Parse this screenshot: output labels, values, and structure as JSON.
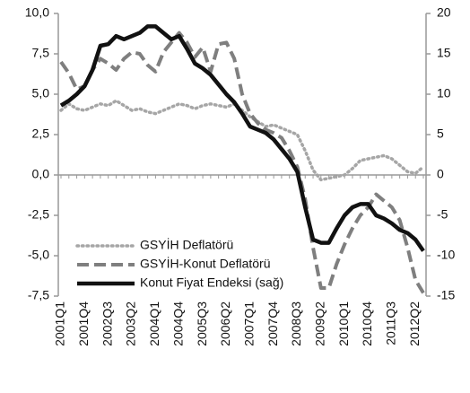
{
  "chart_data": {
    "type": "line",
    "categories": [
      "2001Q1",
      null,
      null,
      "2001Q4",
      null,
      null,
      "2002Q3",
      null,
      null,
      "2003Q2",
      null,
      null,
      "2004Q1",
      null,
      null,
      "2004Q4",
      null,
      null,
      "2005Q3",
      null,
      null,
      "2006Q2",
      null,
      null,
      "2007Q1",
      null,
      null,
      "2007Q4",
      null,
      null,
      "2008Q3",
      null,
      null,
      "2009Q2",
      null,
      null,
      "2010Q1",
      null,
      null,
      "2010Q4",
      null,
      null,
      "2011Q3",
      null,
      null,
      "2012Q2",
      null
    ],
    "ylim": [
      -7.5,
      10
    ],
    "yticks": [
      {
        "value": -7.5,
        "label": "-7,5"
      },
      {
        "value": -5,
        "label": "-5,0"
      },
      {
        "value": -2.5,
        "label": "-2,5"
      },
      {
        "value": 0,
        "label": "0,0"
      },
      {
        "value": 2.5,
        "label": "2,5"
      },
      {
        "value": 5,
        "label": "5,0"
      },
      {
        "value": 7.5,
        "label": "7,5"
      },
      {
        "value": 10,
        "label": "10,0"
      }
    ],
    "y2lim": [
      -15,
      20
    ],
    "y2ticks": [
      -15,
      -10,
      -5,
      0,
      5,
      10,
      15,
      20
    ],
    "legend": "lower left",
    "series": [
      {
        "name": "GSYİH Deflatörü",
        "color": "#a6a6a6",
        "line_style": "dotted",
        "values": [
          4.0,
          4.4,
          4.1,
          4.0,
          4.2,
          4.4,
          4.3,
          4.6,
          4.3,
          4.0,
          4.1,
          3.9,
          3.8,
          4.0,
          4.2,
          4.4,
          4.3,
          4.1,
          4.3,
          4.4,
          4.3,
          4.2,
          4.4,
          4.0,
          3.6,
          3.3,
          3.0,
          3.1,
          2.9,
          2.7,
          2.5,
          1.5,
          0.3,
          -0.3,
          -0.2,
          -0.1,
          0.0,
          0.4,
          0.9,
          1.0,
          1.1,
          1.2,
          1.0,
          0.6,
          0.2,
          0.1,
          0.5
        ]
      },
      {
        "name": "GSYİH-Konut Deflatörü",
        "color": "#7f7f7f",
        "line_style": "dashed",
        "values": [
          7.0,
          6.3,
          5.3,
          5.5,
          6.5,
          7.2,
          6.9,
          6.5,
          7.2,
          7.6,
          7.5,
          6.8,
          6.4,
          7.6,
          8.2,
          8.8,
          8.2,
          7.3,
          7.9,
          6.4,
          8.1,
          8.2,
          7.2,
          5.0,
          3.8,
          3.2,
          2.8,
          2.6,
          2.3,
          1.5,
          0.5,
          -1.5,
          -4.5,
          -7.0,
          -7.0,
          -5.5,
          -4.3,
          -3.3,
          -2.5,
          -2.0,
          -1.2,
          -1.6,
          -2.0,
          -2.8,
          -4.5,
          -6.5,
          -7.3
        ]
      },
      {
        "name": "Konut Fiyat Endeksi (sağ)",
        "color": "#111111",
        "line_style": "solid",
        "axis": "y2",
        "values": [
          8.6,
          9.2,
          10.0,
          11.0,
          13.0,
          16.0,
          16.2,
          17.2,
          16.8,
          17.2,
          17.6,
          18.4,
          18.4,
          17.6,
          16.8,
          17.2,
          15.6,
          13.8,
          13.2,
          12.4,
          11.2,
          10.0,
          9.0,
          7.6,
          6.0,
          5.6,
          5.2,
          4.4,
          3.2,
          2.0,
          0.4,
          -4.0,
          -8.0,
          -8.4,
          -8.4,
          -6.6,
          -5.0,
          -4.0,
          -3.6,
          -3.6,
          -5.0,
          -5.4,
          -6.0,
          -6.8,
          -7.2,
          -8.0,
          -9.4
        ]
      }
    ]
  }
}
